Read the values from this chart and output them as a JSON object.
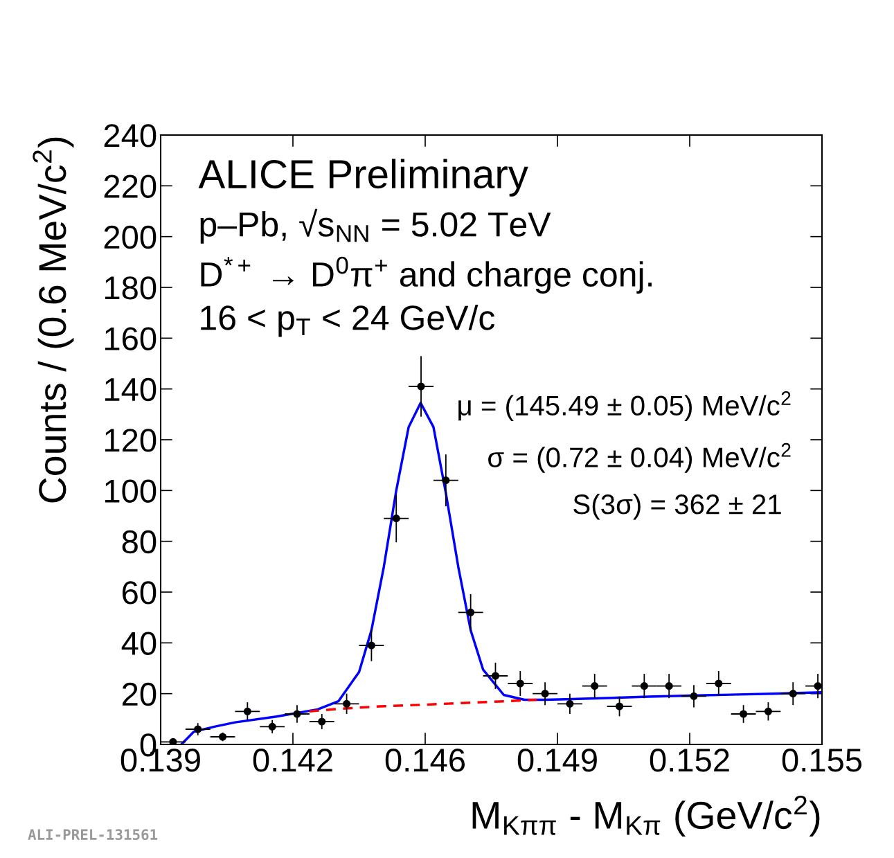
{
  "chart_data": {
    "type": "scatter",
    "xlabel": "M$_{Kππ}$ - M$_{Kπ}$ (GeV/c$^{2}$)",
    "ylabel": "Counts / (0.6 MeV/c$^{2}$)",
    "xlim": [
      0.1392,
      0.1552
    ],
    "xticks": [
      {
        "value": 0.1392,
        "label": "0.139"
      },
      {
        "value": 0.1424,
        "label": "0.142"
      },
      {
        "value": 0.1456,
        "label": "0.146"
      },
      {
        "value": 0.1488,
        "label": "0.149"
      },
      {
        "value": 0.152,
        "label": "0.152"
      },
      {
        "value": 0.1552,
        "label": "0.155"
      }
    ],
    "ylim": [
      0,
      240
    ],
    "yticks": [
      0,
      20,
      40,
      60,
      80,
      100,
      120,
      140,
      160,
      180,
      200,
      220,
      240
    ],
    "grid": false,
    "legend": false,
    "series": [
      {
        "marker": "circle",
        "color": "#000000",
        "x": [
          0.1395,
          0.1401,
          0.1407,
          0.1413,
          0.1419,
          0.1425,
          0.1431,
          0.1437,
          0.1443,
          0.1449,
          0.1455,
          0.1461,
          0.1467,
          0.1473,
          0.1479,
          0.1485,
          0.1491,
          0.1497,
          0.1503,
          0.1509,
          0.1515,
          0.1521,
          0.1527,
          0.1533,
          0.1539,
          0.1545,
          0.1551
        ],
        "values": [
          1,
          6,
          3,
          13,
          7,
          12,
          9,
          16,
          39,
          89,
          141,
          104,
          52,
          27,
          24,
          20,
          16,
          23,
          15,
          23,
          23,
          19,
          24,
          12,
          13,
          20,
          23
        ],
        "errors": [
          1,
          2.4,
          1.7,
          3.6,
          2.6,
          3.5,
          3,
          4,
          6.2,
          9.4,
          11.9,
          10.2,
          7.2,
          5.2,
          4.9,
          4.5,
          4,
          4.8,
          3.9,
          4.8,
          4.8,
          4.4,
          4.9,
          3.5,
          3.6,
          4.5,
          4.8
        ],
        "xerrors": [
          0.0003,
          0.0003,
          0.0003,
          0.0003,
          0.0003,
          0.0003,
          0.0003,
          0.0003,
          0.0003,
          0.0003,
          0.0003,
          0.0003,
          0.0003,
          0.0003,
          0.0003,
          0.0003,
          0.0003,
          0.0003,
          0.0003,
          0.0003,
          0.0003,
          0.0003,
          0.0003,
          0.0003,
          0.0003,
          0.0003,
          0.0003
        ]
      },
      {
        "type": "line",
        "line_style": "solid",
        "color": "#0000ff",
        "x": [
          0.1397,
          0.14,
          0.1405,
          0.141,
          0.142,
          0.143,
          0.1435,
          0.144,
          0.1443,
          0.1446,
          0.1449,
          0.1452,
          0.14549,
          0.1458,
          0.1461,
          0.1464,
          0.1467,
          0.147,
          0.1475,
          0.148,
          0.1485,
          0.149,
          0.15,
          0.151,
          0.152,
          0.153,
          0.154,
          0.1552
        ],
        "values": [
          0,
          5,
          7,
          8.7,
          11,
          13.8,
          17,
          28.5,
          45,
          70,
          100,
          125,
          134.5,
          125,
          99,
          70,
          45,
          29.5,
          19.5,
          17.6,
          17.6,
          17.8,
          18.3,
          18.8,
          19.2,
          19.6,
          20,
          20.5
        ]
      },
      {
        "type": "line",
        "line_style": "dashed",
        "color": "#ff0000",
        "x": [
          0.1428,
          0.1435,
          0.1445,
          0.1455,
          0.1465,
          0.1475,
          0.1483
        ],
        "values": [
          13,
          14,
          15,
          15.6,
          16.3,
          17,
          17.6
        ]
      }
    ],
    "annotations": [
      "ALICE Preliminary",
      "p–Pb, √s$_{NN}$ = 5.02 TeV",
      "D$^{*+}$ → D$^{0}$π$^{+}$ and charge conj.",
      "16 < p$_{T}$ < 24 GeV/c",
      "μ = (145.49 ± 0.05) MeV/c$^{2}$",
      "σ = (0.72 ± 0.04) MeV/c$^{2}$",
      "S(3σ) = 362 ± 21",
      "ALI-PREL-131561"
    ]
  }
}
